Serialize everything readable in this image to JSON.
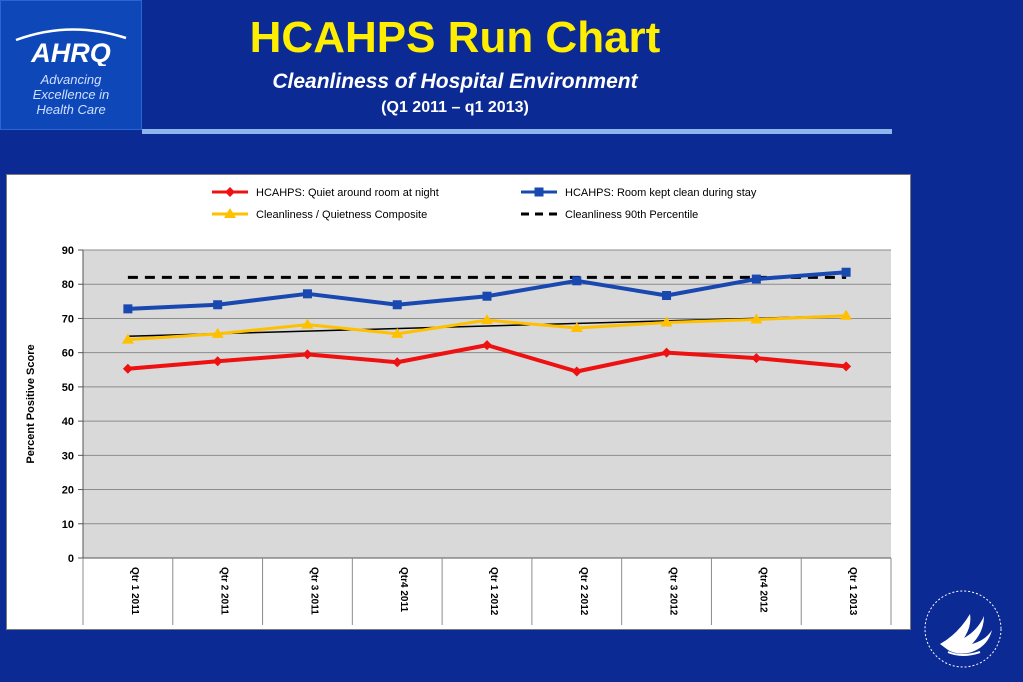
{
  "logo": {
    "brand": "AHRQ",
    "tagline": [
      "Advancing",
      "Excellence in",
      "Health Care"
    ]
  },
  "header": {
    "title": "HCAHPS Run Chart",
    "subtitle": "Cleanliness of Hospital Environment",
    "period": "(Q1 2011 – q1 2013)"
  },
  "seal": {
    "icon": "hhs-eagle-seal-icon"
  },
  "chart_data": {
    "type": "line",
    "title": "",
    "xlabel": "",
    "ylabel": "Percent Positive Score",
    "ylim": [
      0,
      90
    ],
    "yticks": [
      0,
      10,
      20,
      30,
      40,
      50,
      60,
      70,
      80,
      90
    ],
    "grid": true,
    "legend_position": "top",
    "categories": [
      "Qtr 1 2011",
      "Qtr 2 2011",
      "Qtr 3 2011",
      "Qtr4 2011",
      "Qtr 1 2012",
      "Qtr 2 2012",
      "Qtr 3 2012",
      "Qtr4 2012",
      "Qtr 1 2013"
    ],
    "series": [
      {
        "name": "HCAHPS: Quiet around  room  at night",
        "color": "#ee1111",
        "marker": "diamond",
        "values": [
          55.3,
          57.5,
          59.5,
          57.2,
          62.2,
          54.5,
          60.0,
          58.4,
          56.0
        ]
      },
      {
        "name": "HCAHPS: Room kept clean during stay",
        "color": "#1848b0",
        "marker": "square",
        "values": [
          72.8,
          74.0,
          77.2,
          74.0,
          76.5,
          81.0,
          76.7,
          81.5,
          83.5
        ]
      },
      {
        "name": "Cleanliness / Quietness Composite",
        "color": "#ffc000",
        "marker": "triangle",
        "values": [
          63.8,
          65.5,
          68.2,
          65.5,
          69.5,
          67.2,
          68.8,
          69.7,
          70.8
        ]
      },
      {
        "name": "Cleanliness 90th Percentile",
        "color": "#000000",
        "dash": true,
        "marker": "none",
        "values": [
          82,
          82,
          82,
          82,
          82,
          82,
          82,
          82,
          82
        ]
      }
    ],
    "trendline": {
      "series": "Cleanliness / Quietness Composite",
      "color": "#000000",
      "start": 64.8,
      "end": 70.8
    }
  }
}
